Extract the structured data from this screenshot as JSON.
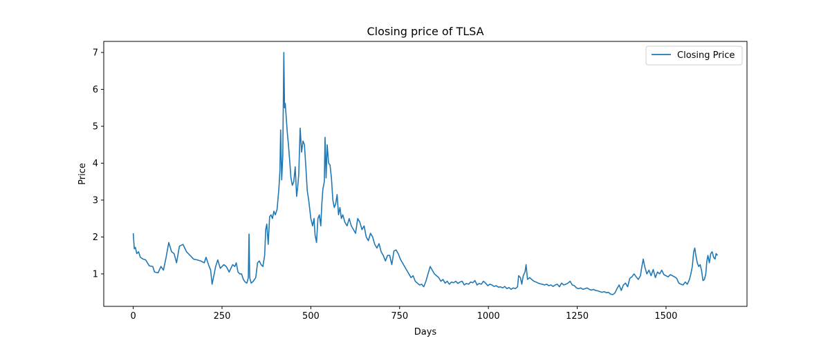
{
  "chart_data": {
    "type": "line",
    "title": "Closing price of TLSA",
    "xlabel": "Days",
    "ylabel": "Price",
    "xlim": [
      -83,
      1728
    ],
    "ylim": [
      0.12,
      7.3
    ],
    "x_ticks": [
      0,
      250,
      500,
      750,
      1000,
      1250,
      1500
    ],
    "y_ticks": [
      1,
      2,
      3,
      4,
      5,
      6,
      7
    ],
    "grid": false,
    "legend": {
      "position": "top-right",
      "entries": [
        "Closing Price"
      ]
    },
    "series": [
      {
        "name": "Closing Price",
        "color": "#1f77b4",
        "points": [
          [
            0,
            2.1
          ],
          [
            3,
            1.68
          ],
          [
            6,
            1.72
          ],
          [
            10,
            1.55
          ],
          [
            15,
            1.6
          ],
          [
            20,
            1.45
          ],
          [
            28,
            1.4
          ],
          [
            35,
            1.38
          ],
          [
            45,
            1.22
          ],
          [
            55,
            1.2
          ],
          [
            60,
            1.05
          ],
          [
            70,
            1.03
          ],
          [
            78,
            1.2
          ],
          [
            85,
            1.1
          ],
          [
            92,
            1.42
          ],
          [
            100,
            1.85
          ],
          [
            108,
            1.6
          ],
          [
            115,
            1.55
          ],
          [
            122,
            1.3
          ],
          [
            130,
            1.75
          ],
          [
            140,
            1.8
          ],
          [
            150,
            1.6
          ],
          [
            160,
            1.5
          ],
          [
            170,
            1.4
          ],
          [
            180,
            1.38
          ],
          [
            190,
            1.35
          ],
          [
            200,
            1.3
          ],
          [
            205,
            1.45
          ],
          [
            212,
            1.25
          ],
          [
            218,
            1.1
          ],
          [
            222,
            0.72
          ],
          [
            228,
            1.0
          ],
          [
            232,
            1.2
          ],
          [
            238,
            1.38
          ],
          [
            245,
            1.15
          ],
          [
            255,
            1.25
          ],
          [
            262,
            1.2
          ],
          [
            270,
            1.05
          ],
          [
            280,
            1.25
          ],
          [
            286,
            1.2
          ],
          [
            290,
            1.3
          ],
          [
            295,
            1.05
          ],
          [
            300,
            1.0
          ],
          [
            305,
            1.0
          ],
          [
            310,
            0.85
          ],
          [
            315,
            0.78
          ],
          [
            320,
            0.75
          ],
          [
            324,
            0.9
          ],
          [
            326,
            2.08
          ],
          [
            328,
            0.9
          ],
          [
            332,
            0.75
          ],
          [
            338,
            0.8
          ],
          [
            345,
            0.9
          ],
          [
            350,
            1.3
          ],
          [
            355,
            1.35
          ],
          [
            360,
            1.25
          ],
          [
            365,
            1.2
          ],
          [
            370,
            1.5
          ],
          [
            373,
            2.2
          ],
          [
            376,
            2.35
          ],
          [
            380,
            1.8
          ],
          [
            384,
            2.55
          ],
          [
            388,
            2.6
          ],
          [
            392,
            2.5
          ],
          [
            396,
            2.7
          ],
          [
            400,
            2.6
          ],
          [
            405,
            2.75
          ],
          [
            410,
            3.3
          ],
          [
            413,
            3.8
          ],
          [
            415,
            4.9
          ],
          [
            418,
            3.55
          ],
          [
            421,
            4.2
          ],
          [
            424,
            7.0
          ],
          [
            426,
            5.5
          ],
          [
            428,
            5.62
          ],
          [
            431,
            5.2
          ],
          [
            434,
            4.8
          ],
          [
            437,
            4.5
          ],
          [
            441,
            4.0
          ],
          [
            444,
            3.6
          ],
          [
            448,
            3.4
          ],
          [
            452,
            3.5
          ],
          [
            456,
            3.9
          ],
          [
            460,
            3.1
          ],
          [
            463,
            3.35
          ],
          [
            466,
            3.7
          ],
          [
            470,
            4.95
          ],
          [
            474,
            4.3
          ],
          [
            478,
            4.6
          ],
          [
            482,
            4.5
          ],
          [
            486,
            3.9
          ],
          [
            490,
            3.25
          ],
          [
            494,
            3.0
          ],
          [
            500,
            2.5
          ],
          [
            505,
            2.3
          ],
          [
            509,
            2.5
          ],
          [
            512,
            2.05
          ],
          [
            516,
            1.85
          ],
          [
            520,
            2.5
          ],
          [
            524,
            2.6
          ],
          [
            528,
            2.3
          ],
          [
            531,
            2.9
          ],
          [
            534,
            3.3
          ],
          [
            538,
            3.5
          ],
          [
            540,
            4.7
          ],
          [
            543,
            3.6
          ],
          [
            546,
            4.5
          ],
          [
            550,
            4.0
          ],
          [
            554,
            3.95
          ],
          [
            558,
            3.6
          ],
          [
            562,
            3.0
          ],
          [
            566,
            2.8
          ],
          [
            570,
            2.9
          ],
          [
            574,
            3.15
          ],
          [
            578,
            2.6
          ],
          [
            582,
            2.8
          ],
          [
            586,
            2.5
          ],
          [
            590,
            2.6
          ],
          [
            596,
            2.4
          ],
          [
            602,
            2.3
          ],
          [
            608,
            2.5
          ],
          [
            614,
            2.3
          ],
          [
            620,
            2.2
          ],
          [
            626,
            2.1
          ],
          [
            632,
            2.5
          ],
          [
            638,
            2.4
          ],
          [
            644,
            2.2
          ],
          [
            650,
            2.3
          ],
          [
            656,
            2.0
          ],
          [
            662,
            1.9
          ],
          [
            668,
            2.1
          ],
          [
            674,
            2.0
          ],
          [
            680,
            1.8
          ],
          [
            686,
            1.7
          ],
          [
            692,
            1.82
          ],
          [
            698,
            1.6
          ],
          [
            704,
            1.5
          ],
          [
            710,
            1.35
          ],
          [
            716,
            1.5
          ],
          [
            722,
            1.5
          ],
          [
            728,
            1.25
          ],
          [
            734,
            1.62
          ],
          [
            740,
            1.65
          ],
          [
            746,
            1.55
          ],
          [
            752,
            1.4
          ],
          [
            758,
            1.3
          ],
          [
            764,
            1.2
          ],
          [
            770,
            1.1
          ],
          [
            776,
            1.0
          ],
          [
            782,
            0.9
          ],
          [
            788,
            0.95
          ],
          [
            794,
            0.8
          ],
          [
            800,
            0.75
          ],
          [
            806,
            0.7
          ],
          [
            812,
            0.72
          ],
          [
            818,
            0.65
          ],
          [
            824,
            0.8
          ],
          [
            830,
            1.0
          ],
          [
            836,
            1.2
          ],
          [
            842,
            1.1
          ],
          [
            848,
            1.0
          ],
          [
            854,
            0.95
          ],
          [
            860,
            0.9
          ],
          [
            866,
            0.8
          ],
          [
            872,
            0.85
          ],
          [
            878,
            0.75
          ],
          [
            884,
            0.8
          ],
          [
            890,
            0.72
          ],
          [
            896,
            0.78
          ],
          [
            902,
            0.76
          ],
          [
            908,
            0.8
          ],
          [
            914,
            0.74
          ],
          [
            920,
            0.78
          ],
          [
            926,
            0.8
          ],
          [
            932,
            0.7
          ],
          [
            938,
            0.74
          ],
          [
            944,
            0.72
          ],
          [
            950,
            0.78
          ],
          [
            956,
            0.76
          ],
          [
            962,
            0.82
          ],
          [
            968,
            0.7
          ],
          [
            974,
            0.74
          ],
          [
            980,
            0.72
          ],
          [
            986,
            0.8
          ],
          [
            992,
            0.75
          ],
          [
            998,
            0.68
          ],
          [
            1004,
            0.72
          ],
          [
            1010,
            0.7
          ],
          [
            1016,
            0.66
          ],
          [
            1022,
            0.68
          ],
          [
            1028,
            0.64
          ],
          [
            1034,
            0.65
          ],
          [
            1040,
            0.62
          ],
          [
            1046,
            0.66
          ],
          [
            1052,
            0.6
          ],
          [
            1058,
            0.63
          ],
          [
            1064,
            0.58
          ],
          [
            1070,
            0.62
          ],
          [
            1076,
            0.6
          ],
          [
            1082,
            0.65
          ],
          [
            1085,
            0.95
          ],
          [
            1090,
            0.9
          ],
          [
            1094,
            0.72
          ],
          [
            1098,
            0.95
          ],
          [
            1103,
            1.05
          ],
          [
            1106,
            1.25
          ],
          [
            1110,
            0.85
          ],
          [
            1116,
            0.9
          ],
          [
            1122,
            0.85
          ],
          [
            1128,
            0.8
          ],
          [
            1134,
            0.78
          ],
          [
            1140,
            0.75
          ],
          [
            1146,
            0.73
          ],
          [
            1152,
            0.72
          ],
          [
            1158,
            0.7
          ],
          [
            1164,
            0.72
          ],
          [
            1170,
            0.68
          ],
          [
            1176,
            0.7
          ],
          [
            1182,
            0.66
          ],
          [
            1188,
            0.7
          ],
          [
            1194,
            0.72
          ],
          [
            1200,
            0.65
          ],
          [
            1206,
            0.75
          ],
          [
            1212,
            0.7
          ],
          [
            1218,
            0.72
          ],
          [
            1224,
            0.75
          ],
          [
            1230,
            0.8
          ],
          [
            1236,
            0.7
          ],
          [
            1242,
            0.68
          ],
          [
            1248,
            0.62
          ],
          [
            1254,
            0.6
          ],
          [
            1260,
            0.62
          ],
          [
            1266,
            0.58
          ],
          [
            1272,
            0.6
          ],
          [
            1278,
            0.62
          ],
          [
            1284,
            0.58
          ],
          [
            1290,
            0.56
          ],
          [
            1296,
            0.58
          ],
          [
            1302,
            0.55
          ],
          [
            1308,
            0.54
          ],
          [
            1314,
            0.52
          ],
          [
            1320,
            0.5
          ],
          [
            1326,
            0.52
          ],
          [
            1332,
            0.49
          ],
          [
            1338,
            0.5
          ],
          [
            1344,
            0.45
          ],
          [
            1350,
            0.44
          ],
          [
            1356,
            0.48
          ],
          [
            1362,
            0.6
          ],
          [
            1368,
            0.7
          ],
          [
            1374,
            0.55
          ],
          [
            1380,
            0.7
          ],
          [
            1386,
            0.75
          ],
          [
            1392,
            0.65
          ],
          [
            1398,
            0.88
          ],
          [
            1404,
            0.92
          ],
          [
            1410,
            1.0
          ],
          [
            1416,
            0.92
          ],
          [
            1422,
            0.85
          ],
          [
            1428,
            0.95
          ],
          [
            1432,
            1.2
          ],
          [
            1436,
            1.4
          ],
          [
            1440,
            1.2
          ],
          [
            1446,
            1.0
          ],
          [
            1452,
            1.1
          ],
          [
            1458,
            0.95
          ],
          [
            1464,
            1.12
          ],
          [
            1470,
            0.9
          ],
          [
            1476,
            1.05
          ],
          [
            1482,
            1.0
          ],
          [
            1488,
            1.1
          ],
          [
            1494,
            0.98
          ],
          [
            1500,
            0.95
          ],
          [
            1506,
            0.92
          ],
          [
            1512,
            0.98
          ],
          [
            1518,
            0.95
          ],
          [
            1524,
            0.92
          ],
          [
            1530,
            0.88
          ],
          [
            1536,
            0.75
          ],
          [
            1542,
            0.72
          ],
          [
            1548,
            0.7
          ],
          [
            1554,
            0.78
          ],
          [
            1560,
            0.72
          ],
          [
            1566,
            0.85
          ],
          [
            1570,
            1.0
          ],
          [
            1574,
            1.2
          ],
          [
            1578,
            1.6
          ],
          [
            1581,
            1.7
          ],
          [
            1584,
            1.5
          ],
          [
            1588,
            1.3
          ],
          [
            1592,
            1.2
          ],
          [
            1596,
            1.25
          ],
          [
            1600,
            1.1
          ],
          [
            1604,
            0.82
          ],
          [
            1608,
            0.85
          ],
          [
            1612,
            1.0
          ],
          [
            1615,
            1.35
          ],
          [
            1618,
            1.5
          ],
          [
            1622,
            1.3
          ],
          [
            1626,
            1.55
          ],
          [
            1630,
            1.6
          ],
          [
            1634,
            1.45
          ],
          [
            1638,
            1.4
          ],
          [
            1641,
            1.55
          ],
          [
            1645,
            1.5
          ]
        ]
      }
    ]
  }
}
